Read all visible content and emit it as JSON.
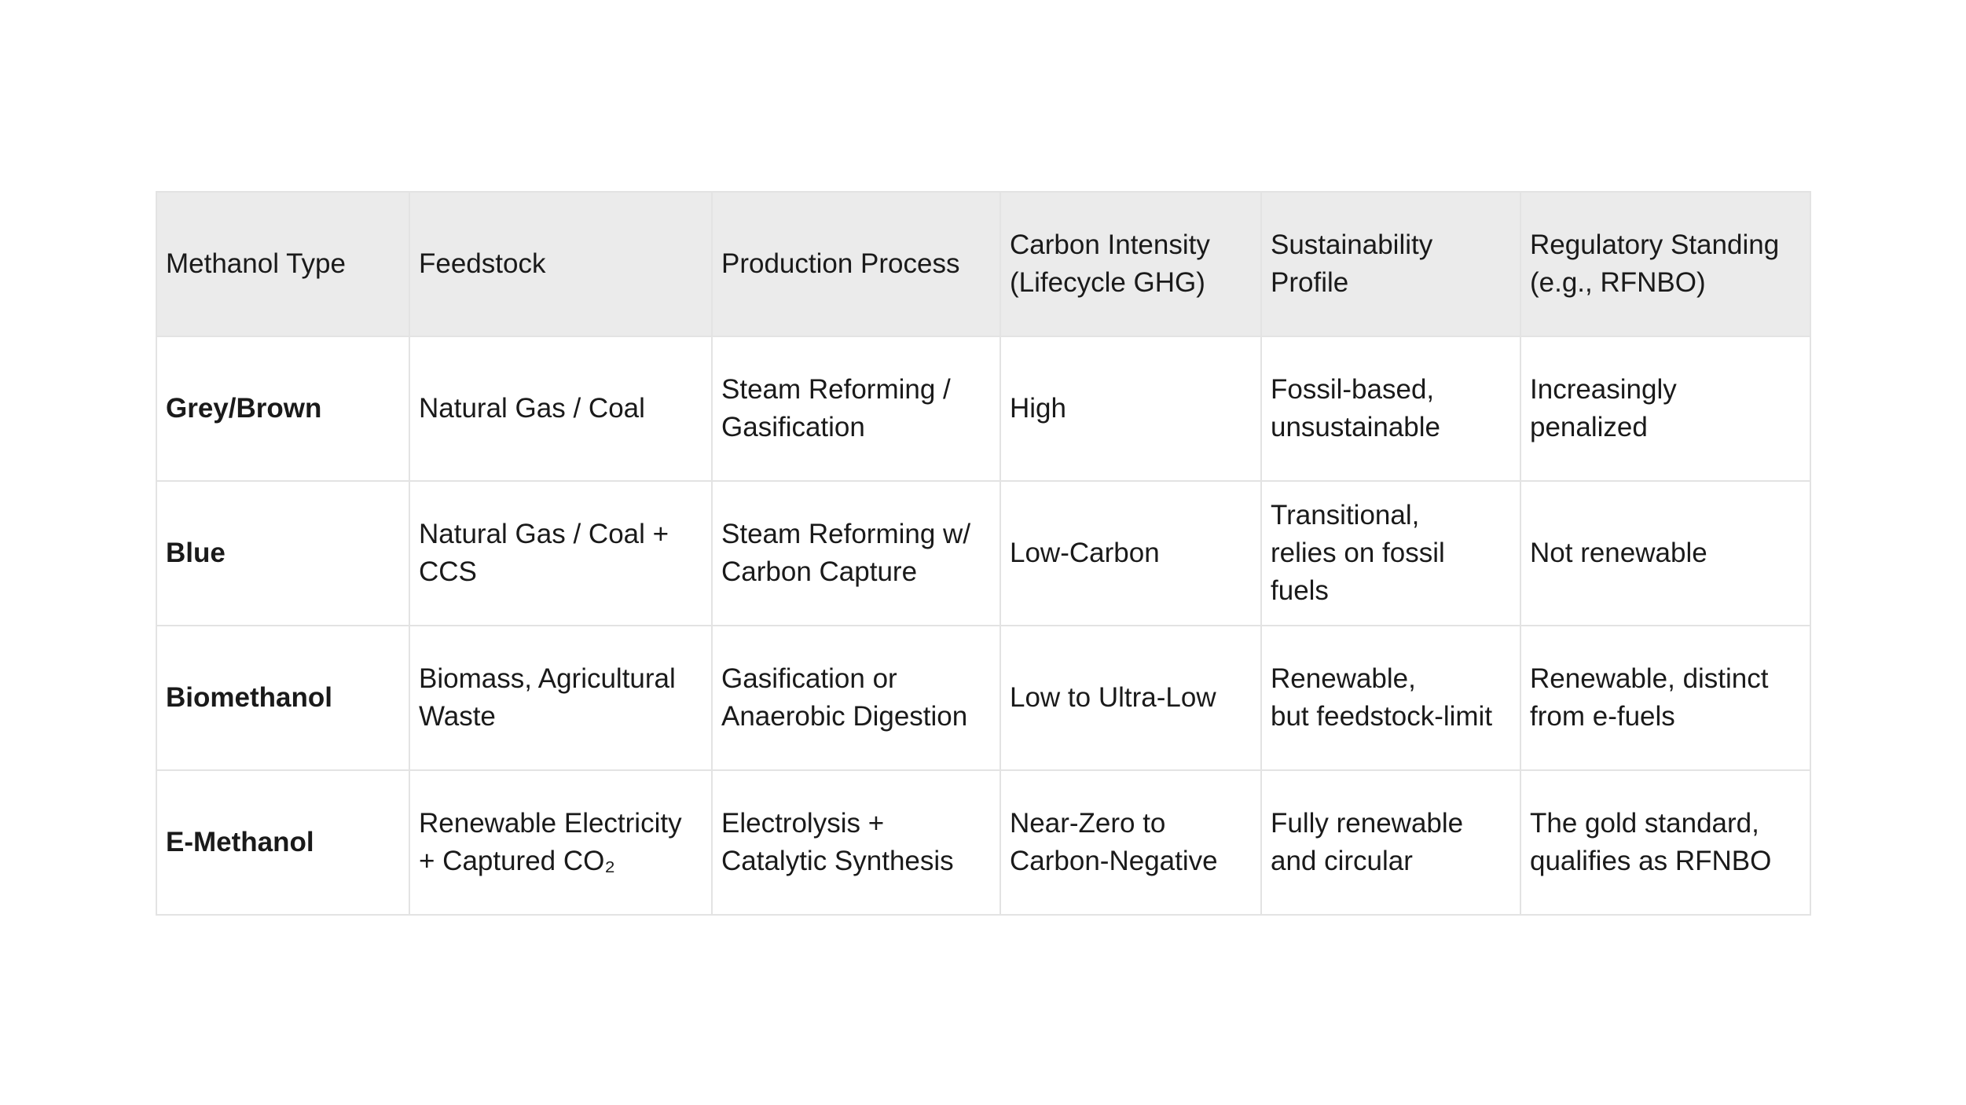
{
  "table": {
    "header": [
      [
        "Methanol Type"
      ],
      [
        "Feedstock"
      ],
      [
        "Production Process"
      ],
      [
        "Carbon Intensity",
        "(Lifecycle GHG)"
      ],
      [
        "Sustainability",
        "Profile"
      ],
      [
        "Regulatory Standing",
        " (e.g., RFNBO)"
      ]
    ],
    "rows": [
      [
        [
          "Grey/Brown"
        ],
        [
          "Natural Gas / Coal"
        ],
        [
          "Steam Reforming /",
          "Gasification"
        ],
        [
          "High"
        ],
        [
          "Fossil-based,",
          "unsustainable"
        ],
        [
          "Increasingly",
          "penalized"
        ]
      ],
      [
        [
          "Blue"
        ],
        [
          "Natural Gas / Coal +",
          "CCS"
        ],
        [
          "Steam Reforming w/",
          "Carbon Capture"
        ],
        [
          "Low-Carbon"
        ],
        [
          "Transitional,",
          "relies on fossil",
          "fuels"
        ],
        [
          "Not renewable"
        ]
      ],
      [
        [
          "Biomethanol"
        ],
        [
          "Biomass, Agricultural",
          "Waste"
        ],
        [
          "Gasification or",
          "Anaerobic Digestion"
        ],
        [
          "Low to Ultra-Low"
        ],
        [
          "Renewable,",
          "but feedstock-limit"
        ],
        [
          "Renewable, distinct",
          "from e-fuels"
        ]
      ],
      [
        [
          "E-Methanol"
        ],
        [
          "Renewable Electricity",
          "+ Captured CO₂"
        ],
        [
          "Electrolysis +",
          "Catalytic Synthesis"
        ],
        [
          "Near-Zero to",
          "Carbon-Negative"
        ],
        [
          "Fully renewable",
          "and circular"
        ],
        [
          "The gold standard,",
          "qualifies as RFNBO"
        ]
      ]
    ]
  }
}
